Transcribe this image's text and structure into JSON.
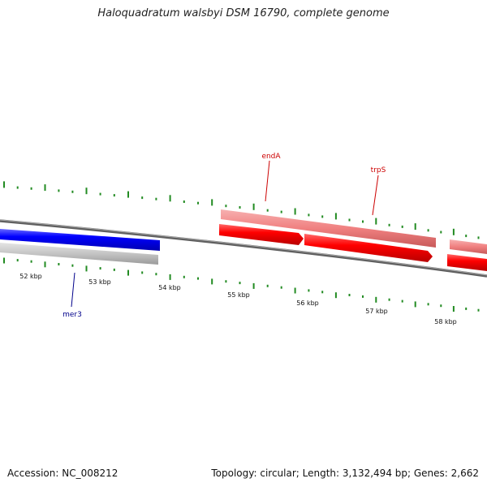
{
  "title": "Haloquadratum walsbyi DSM 16790, complete genome",
  "footer": {
    "accession": "Accession: NC_008212",
    "summary": "Topology: circular; Length: 3,132,494 bp; Genes: 2,662"
  },
  "ticks": [
    {
      "label": "52 kbp",
      "kbp": 52
    },
    {
      "label": "53 kbp",
      "kbp": 53
    },
    {
      "label": "54 kbp",
      "kbp": 54
    },
    {
      "label": "55 kbp",
      "kbp": 55
    },
    {
      "label": "56 kbp",
      "kbp": 56
    },
    {
      "label": "57 kbp",
      "kbp": 57
    },
    {
      "label": "58 kbp",
      "kbp": 58
    }
  ],
  "genes": [
    {
      "name": "mer3",
      "color": "#00008b"
    },
    {
      "name": "endA",
      "color": "#cc0000"
    },
    {
      "name": "trpS",
      "color": "#cc0000"
    }
  ],
  "colors": {
    "forward_gene": "#ff0000",
    "forward_cds": "#f08080",
    "reverse_gene": "#0000ff",
    "reverse_cds": "#c0c0c0",
    "backbone": "#808080",
    "gc_skew": "#228b22"
  }
}
